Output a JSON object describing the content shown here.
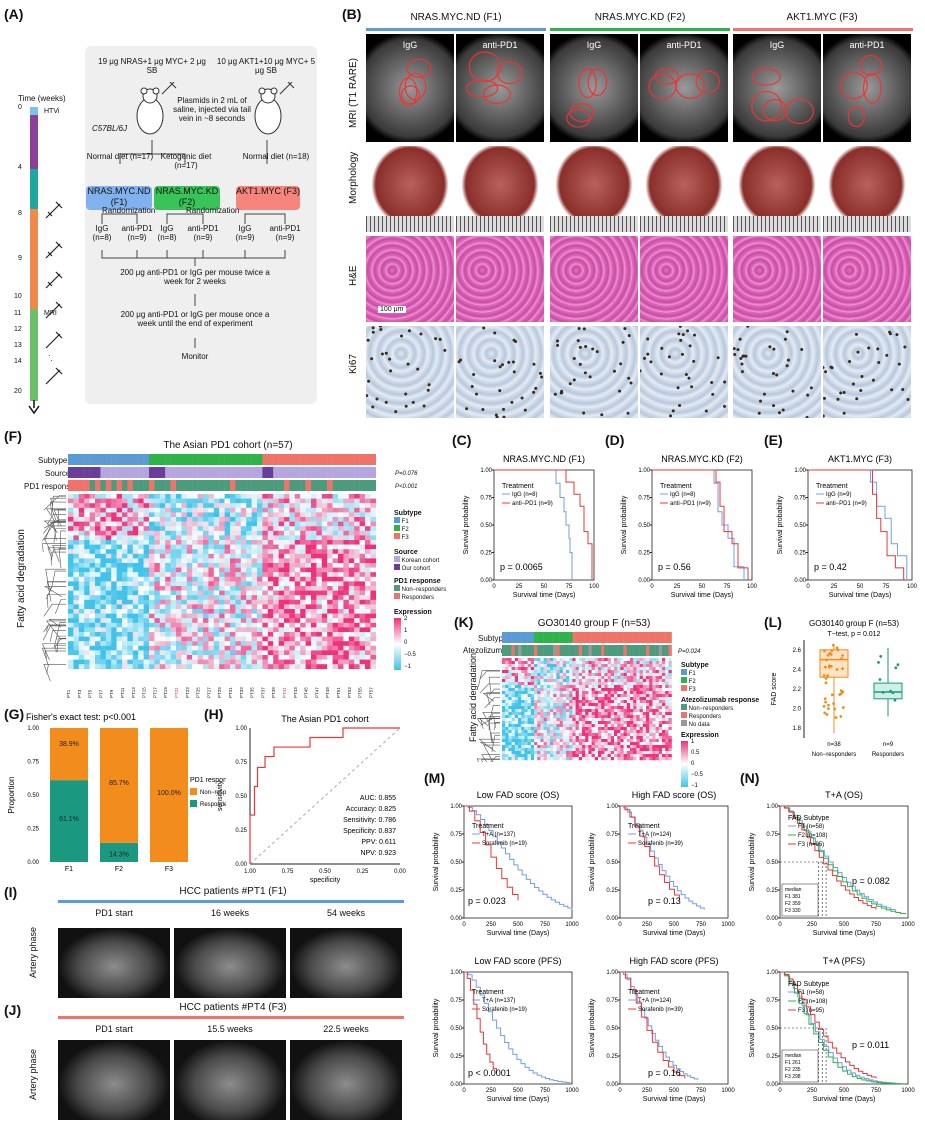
{
  "panels": {
    "A": "(A)",
    "B": "(B)",
    "C": "(C)",
    "D": "(D)",
    "E": "(E)",
    "F": "(F)",
    "G": "(G)",
    "H": "(H)",
    "I": "(I)",
    "J": "(J)",
    "K": "(K)",
    "L": "(L)",
    "M": "(M)",
    "N": "(N)"
  },
  "panelA": {
    "time_label": "Time (weeks)",
    "htvi": "HTVi",
    "mri": "MRI",
    "week_ticks": [
      "0",
      "4",
      "8",
      "9",
      "10",
      "11",
      "12",
      "13",
      "14",
      "20"
    ],
    "plasmid1": "19 μg NRAS+1 μg MYC+ 2 μg SB",
    "plasmid2": "10 μg AKT1+10 μg MYC+ 5 μg SB",
    "injection": "Plasmids in 2 mL of saline, injected via tail vein in ~8 seconds",
    "strain": "C57BL/6J",
    "diet1": "Normal diet (n=17)",
    "diet2": "Ketogenic diet (n=17)",
    "diet3": "Normal diet (n=18)",
    "g1": "NRAS.MYC.ND (F1)",
    "g2": "NRAS.MYC.KD (F2)",
    "g3": "AKT1.MYC (F3)",
    "randomization": "Randomization",
    "arms": [
      "IgG (n=8)",
      "anti-PD1 (n=9)",
      "IgG (n=8)",
      "anti-PD1 (n=9)",
      "IgG (n=9)",
      "anti-PD1 (n=9)"
    ],
    "dose1": "200 μg anti-PD1 or IgG per mouse twice a week for 2 weeks",
    "dose2": "200 μg anti-PD1 or IgG per mouse once a week until the end of experiment",
    "monitor": "Monitor"
  },
  "panelB": {
    "groups": [
      "NRAS.MYC.ND (F1)",
      "NRAS.MYC.KD (F2)",
      "AKT1.MYC (F3)"
    ],
    "columns": [
      "IgG",
      "anti-PD1",
      "IgG",
      "anti-PD1",
      "IgG",
      "anti-PD1"
    ],
    "rows": [
      "MRI (T1 RARE)",
      "Morphology",
      "H&E",
      "Ki67"
    ],
    "scale": "100 μm"
  },
  "surv_common": {
    "xlabel": "Survival time (Days)",
    "ylabel": "Survival probability",
    "treatment": "Treatment",
    "yticks": [
      "0.00",
      "0.25",
      "0.50",
      "0.75",
      "1.00"
    ],
    "xticks": [
      "0",
      "25",
      "50",
      "75",
      "100"
    ]
  },
  "panelC": {
    "title": "NRAS.MYC.ND (F1)",
    "l1": "IgG (n=8)",
    "l2": "anti−PD1 (n=9)",
    "p": "p = 0.0065"
  },
  "panelD": {
    "title": "NRAS.MYC.KD (F2)",
    "l1": "IgG (n=8)",
    "l2": "anti−PD1 (n=9)",
    "p": "p = 0.56"
  },
  "panelE": {
    "title": "AKT1.MYC (F3)",
    "l1": "IgG (n=9)",
    "l2": "anti−PD1 (n=9)",
    "p": "p = 0.42"
  },
  "panelF": {
    "title": "The Asian PD1 cohort (n=57)",
    "rows": [
      "Subtype",
      "Source",
      "PD1 response"
    ],
    "p1": "P=0.076",
    "p2": "P<0.001",
    "ylabel": "Fatty acid degradation",
    "legend": {
      "subtype": "Subtype",
      "f1": "F1",
      "f2": "F2",
      "f3": "F3",
      "source": "Source",
      "korean": "Korean cohort",
      "our": "Our cohort",
      "resp": "PD1 response",
      "nonresp": "Non−responders",
      "responders": "Responders",
      "expr": "Expression",
      "ticks": [
        "2",
        "1",
        "0",
        "−0.5",
        "−1"
      ]
    }
  },
  "panelG": {
    "title": "Fisher's exact test: p<0.001",
    "ylabel": "Proportion",
    "legend_title": "PD1 response",
    "nonresp": "Non−responders",
    "resp": "Responders",
    "yticks": [
      "0.00",
      "0.25",
      "0.50",
      "0.75",
      "1.00"
    ],
    "chart_data": {
      "type": "bar",
      "categories": [
        "F1",
        "F2",
        "F3"
      ],
      "series": [
        {
          "name": "Responders",
          "values": [
            61.1,
            14.3,
            0
          ]
        },
        {
          "name": "Non−responders",
          "values": [
            38.9,
            85.7,
            100
          ]
        }
      ],
      "labels": {
        "nonresp": [
          "38.9%",
          "85.7%",
          "100.0%"
        ],
        "resp": [
          "61.1%",
          "14.3%",
          ""
        ]
      }
    }
  },
  "panelH": {
    "title": "The Asian PD1 cohort",
    "xlabel": "specificity",
    "ylabel": "sensitivity",
    "xticks": [
      "1.00",
      "0.75",
      "0.50",
      "0.25",
      "0.00"
    ],
    "yticks": [
      "0.00",
      "0.25",
      "0.50",
      "0.75",
      "1.00"
    ],
    "stats": [
      "AUC: 0.855",
      "Accuracy: 0.825",
      "Sensitivity: 0.786",
      "Specificity: 0.837",
      "PPV: 0.611",
      "NPV: 0.923"
    ]
  },
  "panelI": {
    "title": "HCC patients #PT1 (F1)",
    "cols": [
      "PD1 start",
      "16 weeks",
      "54 weeks"
    ],
    "row": "Artery phase"
  },
  "panelJ": {
    "title": "HCC patients #PT4 (F3)",
    "cols": [
      "PD1 start",
      "15.5 weeks",
      "22.5 weeks"
    ],
    "row": "Artery phase"
  },
  "panelK": {
    "title": "GO30140 group F (n=53)",
    "rows": [
      "Subtype",
      "Atezolizumab"
    ],
    "p": "P=0.024",
    "ylabel": "Fatty acid degradation",
    "legend": {
      "subtype": "Subtype",
      "f1": "F1",
      "f2": "F2",
      "f3": "F3",
      "resp": "Atezolizumab response",
      "nonresp": "Non−responders",
      "responders": "Responders",
      "nodata": "No data",
      "expr": "Expression",
      "ticks": [
        "1",
        "0.5",
        "0",
        "−0.5",
        "−1"
      ]
    }
  },
  "panelL": {
    "title": "GO30140 group F (n=53)",
    "sub": "T−test, p = 0.012",
    "ylabel": "FAD score",
    "yticks": [
      "1.8",
      "2.0",
      "2.2",
      "2.4",
      "2.6"
    ],
    "cats": [
      "Non−responders",
      "Responders"
    ],
    "ns": [
      "n=38",
      "n=9"
    ]
  },
  "panelM": {
    "plots": [
      {
        "title": "Low FAD score (OS)",
        "l1": "T+A (n=137)",
        "l2": "Sorafenib (n=19)",
        "p": "p = 0.023"
      },
      {
        "title": "High FAD score (OS)",
        "l1": "T+A (n=124)",
        "l2": "Sorafenib (n=39)",
        "p": "p = 0.13"
      },
      {
        "title": "Low FAD score (PFS)",
        "l1": "T+A (n=137)",
        "l2": "Sorafenib (n=19)",
        "p": "p < 0.0001"
      },
      {
        "title": "High FAD score (PFS)",
        "l1": "T+A (n=124)",
        "l2": "Sorafenib (n=39)",
        "p": "p = 0.16"
      }
    ],
    "xticks": [
      "0",
      "250",
      "500",
      "750",
      "1000"
    ]
  },
  "panelN": {
    "plots": [
      {
        "title": "T+A (OS)",
        "p": "p = 0.082",
        "median": [
          "median",
          "F1   381",
          "F2   359",
          "F3   330"
        ]
      },
      {
        "title": "T+A (PFS)",
        "p": "p = 0.011",
        "median": [
          "median",
          "F1   261",
          "F2   235",
          "F3   298"
        ]
      }
    ],
    "legend_title": "FAD Subtype",
    "l": [
      "F1 (n=58)",
      "F2 (n=108)",
      "F3 (n=95)"
    ]
  },
  "colors": {
    "f1": "#5b9bd5",
    "f2": "#2db34a",
    "f3": "#f0736a",
    "orange": "#f28c1c",
    "teal": "#1a9980",
    "red": "#e8373a",
    "blue": "#6f9fe6",
    "pink": "#f0307a",
    "cyan": "#3fc3ea"
  }
}
